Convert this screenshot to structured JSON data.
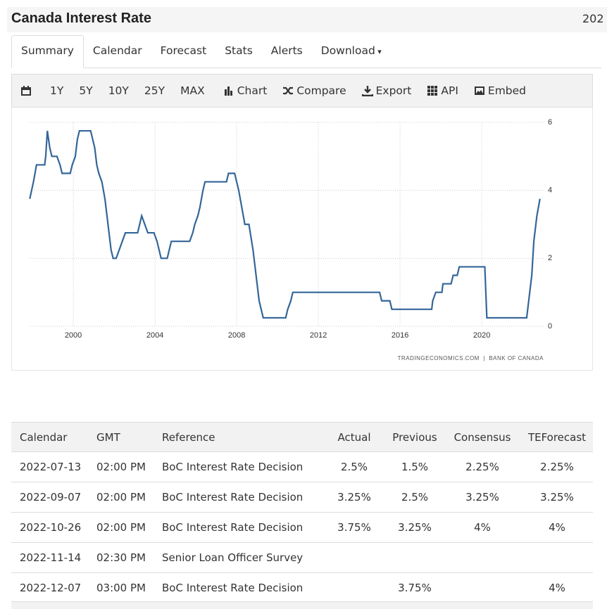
{
  "header": {
    "title": "Canada Interest Rate",
    "cut_text": "202"
  },
  "tabs": [
    "Summary",
    "Calendar",
    "Forecast",
    "Stats",
    "Alerts",
    "Download"
  ],
  "toolbar": {
    "ranges": [
      "1Y",
      "5Y",
      "10Y",
      "25Y",
      "MAX"
    ],
    "actions": [
      "Chart",
      "Compare",
      "Export",
      "API",
      "Embed"
    ]
  },
  "chart_data": {
    "type": "line",
    "color": "#336699",
    "grid": true,
    "source": "TRADINGECONOMICS.COM  |  BANK OF CANADA",
    "x": [
      1997.87,
      1998.05,
      1998.2,
      1998.3,
      1998.6,
      1998.65,
      1998.73,
      1998.85,
      1998.95,
      1999.2,
      1999.35,
      1999.45,
      1999.85,
      1999.95,
      2000.1,
      2000.2,
      2000.3,
      2000.4,
      2000.85,
      2000.95,
      2001.05,
      2001.15,
      2001.25,
      2001.4,
      2001.55,
      2001.7,
      2001.85,
      2001.95,
      2002.1,
      2002.25,
      2002.4,
      2002.55,
      2003.15,
      2003.25,
      2003.35,
      2003.5,
      2003.65,
      2003.95,
      2004.1,
      2004.3,
      2004.6,
      2004.7,
      2004.8,
      2005.7,
      2005.85,
      2005.95,
      2006.1,
      2006.2,
      2006.35,
      2006.45,
      2007.5,
      2007.6,
      2007.9,
      2008.0,
      2008.1,
      2008.25,
      2008.4,
      2008.6,
      2008.8,
      2008.95,
      2009.1,
      2009.3,
      2010.4,
      2010.5,
      2010.65,
      2010.75,
      2015.0,
      2015.1,
      2015.5,
      2015.6,
      2017.55,
      2017.6,
      2017.75,
      2018.05,
      2018.1,
      2018.5,
      2018.6,
      2018.8,
      2018.9,
      2020.15,
      2020.25,
      2022.2,
      2022.25,
      2022.35,
      2022.45,
      2022.55,
      2022.7,
      2022.85
    ],
    "values": [
      3.75,
      4.25,
      4.75,
      4.75,
      4.75,
      5.0,
      5.75,
      5.25,
      5.0,
      5.0,
      4.75,
      4.5,
      4.5,
      4.75,
      5.0,
      5.5,
      5.75,
      5.75,
      5.75,
      5.5,
      5.25,
      4.75,
      4.5,
      4.25,
      3.75,
      3.0,
      2.25,
      2.0,
      2.0,
      2.25,
      2.5,
      2.75,
      2.75,
      3.0,
      3.25,
      3.0,
      2.75,
      2.75,
      2.5,
      2.0,
      2.0,
      2.25,
      2.5,
      2.5,
      2.75,
      3.0,
      3.25,
      3.5,
      4.0,
      4.25,
      4.25,
      4.5,
      4.5,
      4.25,
      4.0,
      3.5,
      3.0,
      3.0,
      2.25,
      1.5,
      0.75,
      0.25,
      0.25,
      0.5,
      0.75,
      1.0,
      1.0,
      0.75,
      0.75,
      0.5,
      0.5,
      0.75,
      1.0,
      1.0,
      1.25,
      1.25,
      1.5,
      1.5,
      1.75,
      1.75,
      0.25,
      0.25,
      0.5,
      1.0,
      1.5,
      2.5,
      3.25,
      3.75
    ],
    "xlim": [
      1997.86,
      2023.03
    ],
    "xticks": [
      2000,
      2004,
      2008,
      2012,
      2016,
      2020
    ],
    "ylim": [
      0,
      6
    ],
    "yticks": [
      0,
      2,
      4,
      6
    ]
  },
  "table": {
    "columns": [
      "Calendar",
      "GMT",
      "Reference",
      "Actual",
      "Previous",
      "Consensus",
      "TEForecast"
    ],
    "rows": [
      [
        "2022-07-13",
        "02:00 PM",
        "BoC Interest Rate Decision",
        "2.5%",
        "1.5%",
        "2.25%",
        "2.25%"
      ],
      [
        "2022-09-07",
        "02:00 PM",
        "BoC Interest Rate Decision",
        "3.25%",
        "2.5%",
        "3.25%",
        "3.25%"
      ],
      [
        "2022-10-26",
        "02:00 PM",
        "BoC Interest Rate Decision",
        "3.75%",
        "3.25%",
        "4%",
        "4%"
      ],
      [
        "2022-11-14",
        "02:30 PM",
        "Senior Loan Officer Survey",
        null,
        null,
        null,
        null
      ],
      [
        "2022-12-07",
        "03:00 PM",
        "BoC Interest Rate Decision",
        null,
        "3.75%",
        null,
        "4%"
      ]
    ]
  }
}
